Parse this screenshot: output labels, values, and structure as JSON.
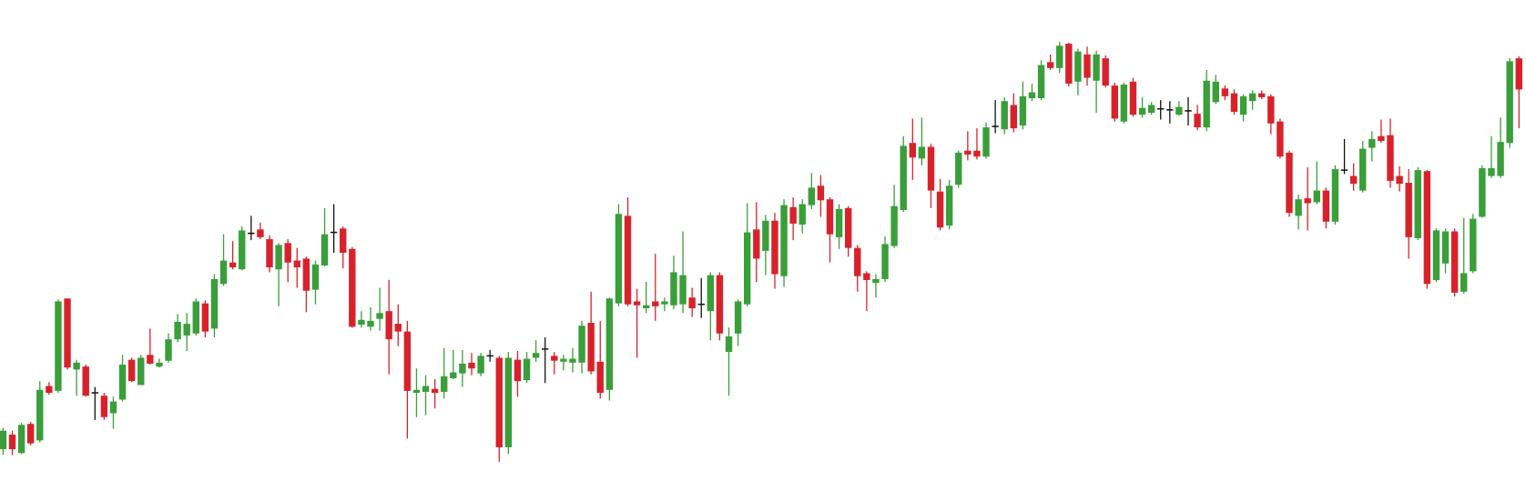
{
  "chart_data": {
    "type": "candlestick",
    "open": [
      38,
      53,
      34,
      64,
      47,
      103,
      98,
      193,
      120,
      123,
      96,
      93,
      75,
      89,
      130,
      104,
      135,
      123,
      129,
      151,
      155,
      157,
      188,
      162,
      208,
      230,
      223,
      260,
      264,
      254,
      223,
      250,
      232,
      234,
      202,
      227,
      261,
      265,
      244,
      166,
      164,
      172,
      180,
      167,
      159,
      96,
      97,
      100,
      97,
      111,
      116,
      127,
      116,
      134,
      132,
      40,
      130,
      109,
      132,
      141,
      134,
      128,
      127,
      127,
      168,
      128,
      99,
      188,
      278,
      190,
      183,
      190,
      187,
      186,
      187,
      194,
      187,
      180,
      217,
      138,
      157,
      187,
      264,
      242,
      273,
      216,
      287,
      269,
      289,
      309,
      295,
      256,
      286,
      245,
      219,
      209,
      213,
      247,
      284,
      353,
      337,
      349,
      303,
      268,
      310,
      345,
      345,
      339,
      370,
      367,
      392,
      371,
      399,
      399,
      436,
      430,
      455,
      416,
      444,
      417,
      440,
      412,
      375,
      416,
      382,
      384,
      388,
      387,
      382,
      386,
      383,
      369,
      395,
      409,
      404,
      382,
      396,
      404,
      401,
      375,
      343,
      278,
      296,
      292,
      304,
      272,
      325,
      319,
      304,
      348,
      360,
      361,
      319,
      312,
      255,
      324,
      212,
      229,
      262,
      200,
      221,
      277,
      319,
      319,
      353,
      440
    ],
    "high": [
      60,
      57,
      65,
      66,
      108,
      107,
      192,
      193,
      130,
      125,
      102,
      96,
      92,
      135,
      132,
      135,
      162,
      131,
      157,
      177,
      178,
      193,
      191,
      218,
      259,
      252,
      267,
      278,
      271,
      258,
      250,
      254,
      245,
      236,
      232,
      286,
      290,
      267,
      246,
      180,
      184,
      204,
      212,
      187,
      170,
      121,
      114,
      110,
      142,
      140,
      140,
      137,
      137,
      140,
      134,
      138,
      139,
      138,
      150,
      153,
      138,
      135,
      142,
      170,
      200,
      170,
      194,
      290,
      297,
      203,
      210,
      239,
      194,
      237,
      262,
      204,
      214,
      220,
      220,
      163,
      192,
      291,
      292,
      279,
      281,
      295,
      297,
      295,
      322,
      320,
      297,
      290,
      288,
      248,
      221,
      218,
      257,
      310,
      360,
      378,
      379,
      352,
      316,
      315,
      345,
      365,
      368,
      374,
      397,
      400,
      404,
      416,
      414,
      438,
      444,
      457,
      456,
      450,
      452,
      448,
      443,
      415,
      415,
      420,
      400,
      395,
      397,
      396,
      396,
      400,
      392,
      428,
      423,
      412,
      408,
      403,
      407,
      407,
      403,
      378,
      345,
      300,
      328,
      334,
      307,
      330,
      357,
      332,
      355,
      365,
      377,
      378,
      329,
      326,
      328,
      325,
      265,
      265,
      265,
      276,
      280,
      330,
      360,
      379,
      440,
      442
    ],
    "low": [
      32,
      32,
      33,
      42,
      45,
      94,
      96,
      120,
      93,
      92,
      68,
      68,
      59,
      87,
      107,
      104,
      125,
      122,
      127,
      148,
      139,
      155,
      153,
      153,
      206,
      223,
      222,
      253,
      254,
      220,
      185,
      210,
      204,
      179,
      187,
      226,
      240,
      224,
      163,
      163,
      160,
      160,
      115,
      144,
      49,
      71,
      73,
      80,
      90,
      110,
      102,
      114,
      113,
      128,
      25,
      33,
      92,
      106,
      128,
      106,
      115,
      119,
      117,
      116,
      115,
      90,
      88,
      185,
      185,
      132,
      178,
      170,
      180,
      182,
      178,
      174,
      173,
      150,
      150,
      93,
      144,
      185,
      210,
      217,
      203,
      205,
      253,
      260,
      285,
      277,
      230,
      244,
      236,
      200,
      180,
      194,
      210,
      245,
      282,
      315,
      330,
      286,
      263,
      264,
      307,
      335,
      336,
      337,
      363,
      362,
      364,
      367,
      396,
      397,
      428,
      425,
      411,
      402,
      412,
      384,
      410,
      375,
      373,
      380,
      379,
      382,
      377,
      373,
      381,
      371,
      366,
      365,
      393,
      397,
      382,
      375,
      387,
      398,
      362,
      337,
      277,
      264,
      263,
      290,
      265,
      269,
      321,
      304,
      302,
      334,
      353,
      307,
      303,
      234,
      253,
      203,
      210,
      219,
      195,
      198,
      219,
      276,
      317,
      317,
      348,
      368
    ],
    "close": [
      57,
      38,
      63,
      44,
      99,
      96,
      190,
      122,
      127,
      93,
      96,
      71,
      87,
      125,
      108,
      132,
      126,
      127,
      151,
      169,
      167,
      190,
      159,
      213,
      232,
      225,
      263,
      260,
      256,
      225,
      248,
      230,
      225,
      201,
      228,
      259,
      261,
      240,
      164,
      171,
      170,
      178,
      151,
      159,
      98,
      99,
      103,
      96,
      113,
      117,
      126,
      121,
      134,
      134,
      40,
      132,
      108,
      131,
      137,
      141,
      129,
      131,
      131,
      165,
      118,
      96,
      193,
      280,
      187,
      186,
      186,
      185,
      190,
      220,
      217,
      183,
      187,
      217,
      157,
      154,
      190,
      261,
      234,
      273,
      218,
      289,
      270,
      290,
      307,
      294,
      259,
      285,
      245,
      216,
      212,
      213,
      249,
      288,
      350,
      338,
      349,
      304,
      266,
      309,
      343,
      341,
      339,
      369,
      370,
      396,
      368,
      401,
      405,
      433,
      430,
      453,
      414,
      447,
      420,
      444,
      412,
      378,
      413,
      382,
      389,
      392,
      388,
      387,
      390,
      386,
      369,
      417,
      416,
      401,
      385,
      401,
      404,
      400,
      373,
      339,
      281,
      295,
      291,
      304,
      272,
      326,
      325,
      311,
      347,
      357,
      355,
      314,
      311,
      256,
      325,
      208,
      263,
      262,
      199,
      219,
      275,
      327,
      327,
      354,
      437,
      408
    ],
    "up_color": "#3a9e3a",
    "down_color": "#d8222b",
    "flat_color": "#111111",
    "ylim": [
      -5,
      500
    ]
  }
}
